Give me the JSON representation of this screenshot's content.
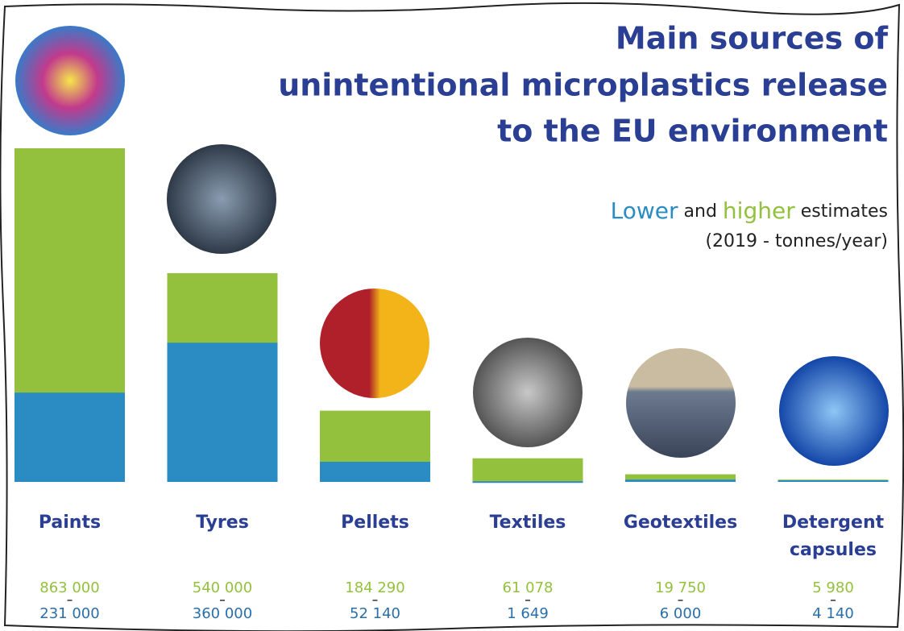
{
  "chart_data": {
    "type": "overlap-bar",
    "title": [
      "Main sources of",
      "unintentional microplastics release",
      "to the EU environment"
    ],
    "legend_text": {
      "joiner": "and",
      "suffix": "estimates"
    },
    "unit_note": "(2019 - tonnes/year)",
    "categories": [
      "Paints",
      "Tyres",
      "Pellets",
      "Textiles",
      "Geotextiles",
      "Detergent capsules"
    ],
    "series": [
      {
        "name": "higher",
        "color": "#93c13e",
        "values": [
          863000,
          540000,
          184290,
          61078,
          19750,
          5980
        ],
        "value_labels": [
          "863 000",
          "540 000",
          "184 290",
          "61 078",
          "19 750",
          "5 980"
        ]
      },
      {
        "name": "Lower",
        "color": "#2b8cc4",
        "values": [
          231000,
          360000,
          52140,
          1649,
          6000,
          4140
        ],
        "value_labels": [
          "231 000",
          "360 000",
          "52 140",
          "1 649",
          "6 000",
          "4 140"
        ]
      }
    ],
    "ylim": [
      0,
      863000
    ]
  }
}
